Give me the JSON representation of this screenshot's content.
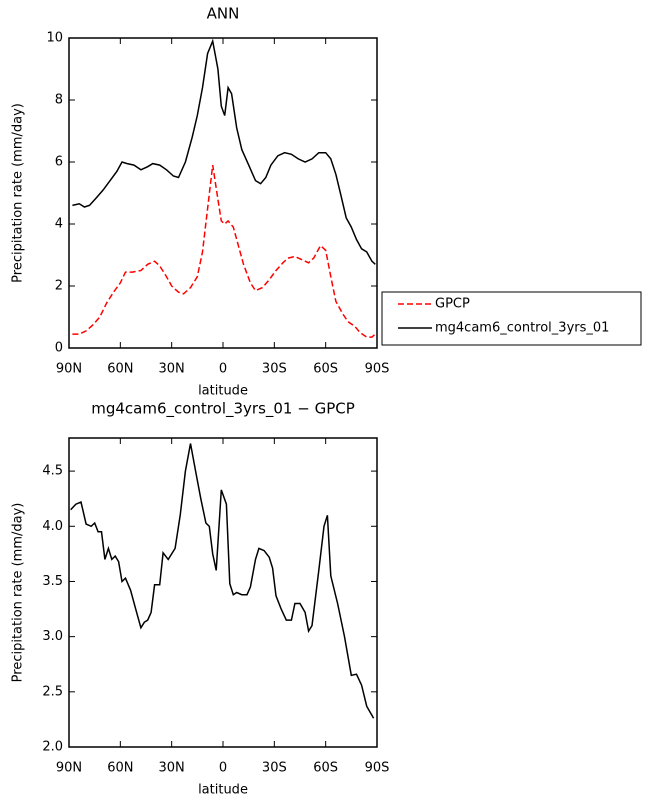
{
  "chart_data": [
    {
      "type": "line",
      "title": "ANN",
      "xlabel": "latitude",
      "ylabel": "Precipitation rate (mm/day)",
      "xlim": [
        90,
        -90
      ],
      "xticks": [
        {
          "value": 90,
          "label": "90N"
        },
        {
          "value": 60,
          "label": "60N"
        },
        {
          "value": 30,
          "label": "30N"
        },
        0,
        {
          "value": -30,
          "label": "30S"
        },
        {
          "value": -60,
          "label": "60S"
        },
        {
          "value": -90,
          "label": "90S"
        }
      ],
      "ylim": [
        0,
        10
      ],
      "yticks": [
        0,
        2,
        4,
        6,
        8,
        10
      ],
      "legend": "outside-right",
      "series": [
        {
          "name": "GPCP",
          "color": "#ff0000",
          "dashed": true,
          "x": [
            88,
            84,
            80,
            76,
            72,
            68,
            64,
            60,
            57,
            53,
            48,
            44,
            40,
            37,
            33,
            30,
            26,
            23,
            19,
            15,
            12,
            9,
            6,
            3,
            1,
            -1,
            -3,
            -6,
            -9,
            -12,
            -16,
            -19,
            -23,
            -27,
            -31,
            -35,
            -38,
            -42,
            -46,
            -50,
            -53,
            -57,
            -60,
            -63,
            -66,
            -70,
            -73,
            -77,
            -80,
            -84,
            -87,
            -89
          ],
          "values": [
            0.45,
            0.45,
            0.55,
            0.75,
            1.0,
            1.45,
            1.8,
            2.1,
            2.45,
            2.45,
            2.5,
            2.7,
            2.8,
            2.65,
            2.3,
            2.0,
            1.8,
            1.75,
            1.95,
            2.3,
            3.1,
            4.5,
            5.9,
            4.8,
            4.1,
            4.0,
            4.1,
            3.9,
            3.3,
            2.7,
            2.1,
            1.85,
            1.95,
            2.2,
            2.5,
            2.75,
            2.9,
            2.95,
            2.85,
            2.75,
            2.9,
            3.3,
            3.15,
            2.3,
            1.5,
            1.1,
            0.85,
            0.7,
            0.5,
            0.35,
            0.35,
            0.45
          ]
        },
        {
          "name": "mg4cam6_control_3yrs_01",
          "color": "#000000",
          "dashed": false,
          "x": [
            88,
            84,
            81,
            78,
            74,
            70,
            66,
            62,
            59,
            56,
            52,
            48,
            44,
            41,
            37,
            33,
            29,
            26,
            22,
            18,
            15,
            12,
            9,
            6,
            3,
            1,
            -1,
            -3,
            -5,
            -8,
            -11,
            -15,
            -19,
            -22,
            -25,
            -28,
            -32,
            -36,
            -40,
            -44,
            -48,
            -52,
            -56,
            -60,
            -63,
            -66,
            -69,
            -72,
            -75,
            -78,
            -81,
            -84,
            -87,
            -89
          ],
          "values": [
            4.6,
            4.65,
            4.55,
            4.6,
            4.85,
            5.1,
            5.4,
            5.7,
            6.0,
            5.95,
            5.9,
            5.75,
            5.85,
            5.95,
            5.9,
            5.75,
            5.55,
            5.5,
            6.0,
            6.8,
            7.5,
            8.4,
            9.5,
            9.9,
            9.0,
            7.8,
            7.5,
            8.4,
            8.2,
            7.1,
            6.4,
            5.9,
            5.4,
            5.3,
            5.5,
            5.9,
            6.2,
            6.3,
            6.25,
            6.1,
            6.0,
            6.1,
            6.3,
            6.3,
            6.1,
            5.6,
            4.9,
            4.2,
            3.9,
            3.5,
            3.2,
            3.1,
            2.8,
            2.7
          ]
        }
      ]
    },
    {
      "type": "line",
      "title": "mg4cam6_control_3yrs_01 − GPCP",
      "xlabel": "latitude",
      "ylabel": "Precipitation rate (mm/day)",
      "xlim": [
        90,
        -90
      ],
      "xticks": [
        {
          "value": 90,
          "label": "90N"
        },
        {
          "value": 60,
          "label": "60N"
        },
        {
          "value": 30,
          "label": "30N"
        },
        0,
        {
          "value": -30,
          "label": "30S"
        },
        {
          "value": -60,
          "label": "60S"
        },
        {
          "value": -90,
          "label": "90S"
        }
      ],
      "ylim": [
        2,
        4.8
      ],
      "yticks": [
        {
          "value": 2,
          "label": "2.0"
        },
        2.5,
        {
          "value": 3,
          "label": "3.0"
        },
        3.5,
        {
          "value": 4,
          "label": "4.0"
        },
        4.5
      ],
      "series": [
        {
          "color": "#000000",
          "dashed": false,
          "x": [
            89,
            86,
            83,
            80,
            77,
            75,
            73,
            71,
            69,
            67,
            65,
            63,
            61,
            59,
            57,
            54,
            51,
            48,
            46,
            44,
            42,
            40,
            37,
            35,
            32,
            28,
            25,
            22,
            19,
            16,
            13,
            10,
            8,
            6,
            4,
            1,
            -2,
            -4,
            -6,
            -8,
            -11,
            -14,
            -16,
            -19,
            -21,
            -24,
            -27,
            -29,
            -31,
            -34,
            -37,
            -40,
            -42,
            -45,
            -48,
            -50,
            -52,
            -56,
            -59,
            -61,
            -63,
            -67,
            -71,
            -75,
            -78,
            -81,
            -84,
            -88
          ],
          "values": [
            4.15,
            4.2,
            4.22,
            4.02,
            4.0,
            4.03,
            3.95,
            3.95,
            3.7,
            3.8,
            3.7,
            3.73,
            3.68,
            3.5,
            3.53,
            3.42,
            3.25,
            3.08,
            3.13,
            3.15,
            3.22,
            3.47,
            3.47,
            3.76,
            3.7,
            3.8,
            4.1,
            4.5,
            4.75,
            4.5,
            4.25,
            4.03,
            4.0,
            3.75,
            3.6,
            4.33,
            4.2,
            3.48,
            3.38,
            3.4,
            3.38,
            3.38,
            3.45,
            3.7,
            3.8,
            3.78,
            3.72,
            3.62,
            3.37,
            3.25,
            3.15,
            3.15,
            3.3,
            3.3,
            3.22,
            3.05,
            3.1,
            3.6,
            4.0,
            4.1,
            3.55,
            3.3,
            3.0,
            2.65,
            2.66,
            2.56,
            2.37,
            2.26
          ]
        }
      ]
    }
  ]
}
